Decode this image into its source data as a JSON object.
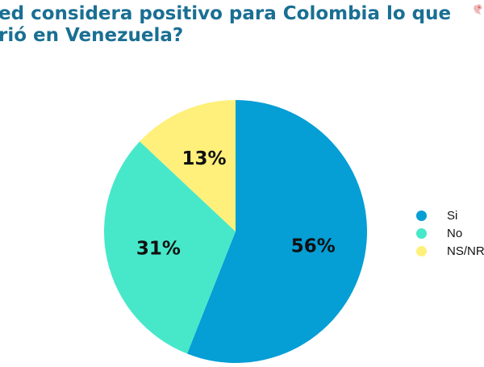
{
  "title": {
    "line1": "ed considera positivo para Colombia lo que",
    "line2": "rió en Venezuela?"
  },
  "colors": {
    "title": "#1a6f93",
    "si": "#059ed5",
    "no": "#47e8c9",
    "nsnr": "#fef07a"
  },
  "chart_data": {
    "type": "pie",
    "title": "ed considera positivo para Colombia lo que rió en Venezuela?",
    "categories": [
      "Si",
      "No",
      "NS/NR"
    ],
    "values": [
      56,
      31,
      13
    ],
    "labels": [
      "56%",
      "31%",
      "13%"
    ],
    "colors": [
      "#059ed5",
      "#47e8c9",
      "#fef07a"
    ],
    "legend_placement": "right"
  },
  "legend": [
    {
      "label": "Si",
      "color": "#059ed5"
    },
    {
      "label": "No",
      "color": "#47e8c9"
    },
    {
      "label": "NS/NR",
      "color": "#fef07a"
    }
  ]
}
